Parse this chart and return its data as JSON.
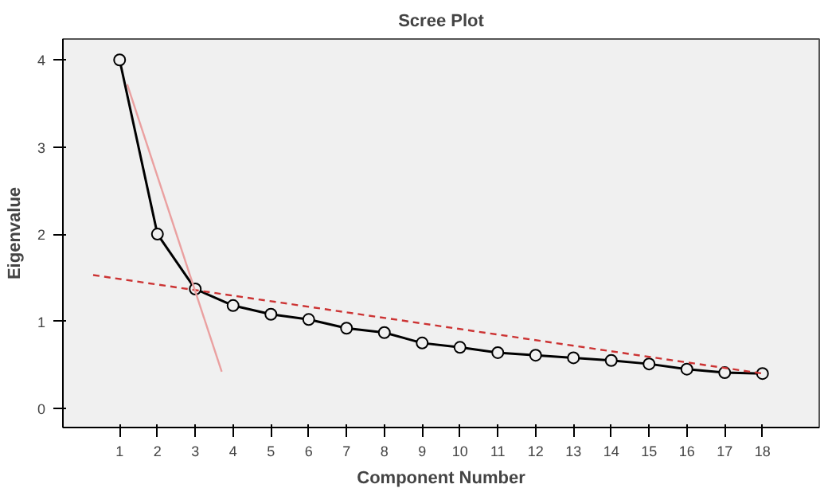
{
  "chart_data": {
    "type": "line",
    "title": "Scree Plot",
    "xlabel": "Component Number",
    "ylabel": "Eigenvalue",
    "x": [
      1,
      2,
      3,
      4,
      5,
      6,
      7,
      8,
      9,
      10,
      11,
      12,
      13,
      14,
      15,
      16,
      17,
      18
    ],
    "series": [
      {
        "color": "#000000",
        "marker": "circle",
        "line_style": "solid",
        "values": [
          4.0,
          2.0,
          1.37,
          1.18,
          1.08,
          1.02,
          0.92,
          0.87,
          0.75,
          0.7,
          0.64,
          0.61,
          0.58,
          0.55,
          0.51,
          0.45,
          0.41,
          0.4
        ]
      },
      {
        "type": "line",
        "color": "#cc3333",
        "line_style": "dashed",
        "marker": "none",
        "x": [
          0.3,
          18
        ],
        "values": [
          1.53,
          0.4
        ]
      },
      {
        "type": "line",
        "color": "#eaa0a0",
        "line_style": "solid",
        "marker": "none",
        "x": [
          1.2,
          3.7
        ],
        "values": [
          3.72,
          0.42
        ]
      }
    ],
    "xlim": [
      -0.5,
      19.5
    ],
    "xticks": [
      1,
      2,
      3,
      4,
      5,
      6,
      7,
      8,
      9,
      10,
      11,
      12,
      13,
      14,
      15,
      16,
      17,
      18
    ],
    "ylim": [
      -0.22,
      4.24
    ],
    "yticks": [
      0,
      1,
      2,
      3,
      4
    ],
    "grid": false
  }
}
